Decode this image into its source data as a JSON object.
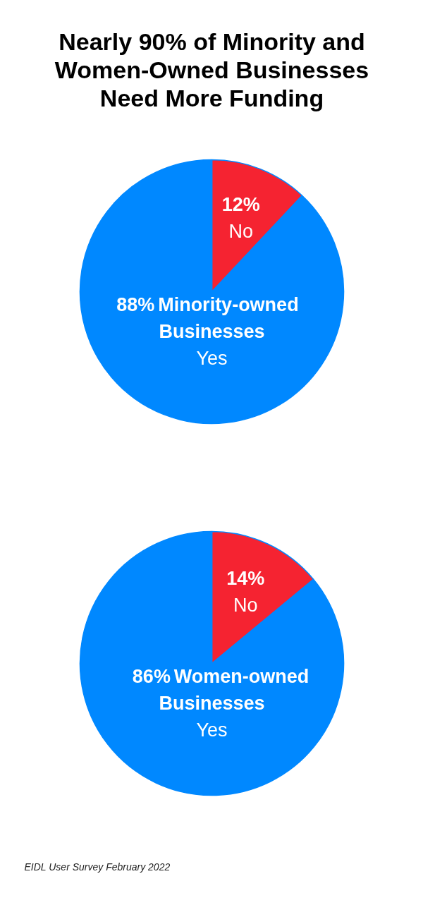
{
  "chart_data": [
    {
      "type": "pie",
      "title": "Nearly 90% of Minority and Women-Owned Businesses Need More Funding",
      "subtitle": "Minority-owned Businesses",
      "categories": [
        "No",
        "Yes"
      ],
      "values": [
        12,
        88
      ],
      "colors": [
        "#f52331",
        "#0088ff"
      ],
      "value_labels": [
        "12%",
        "88%"
      ]
    },
    {
      "type": "pie",
      "subtitle": "Women-owned Businesses",
      "categories": [
        "No",
        "Yes"
      ],
      "values": [
        14,
        86
      ],
      "colors": [
        "#f52331",
        "#0088ff"
      ],
      "value_labels": [
        "14%",
        "86%"
      ],
      "annotations": [
        "EIDL User Survey February 2022"
      ]
    }
  ]
}
